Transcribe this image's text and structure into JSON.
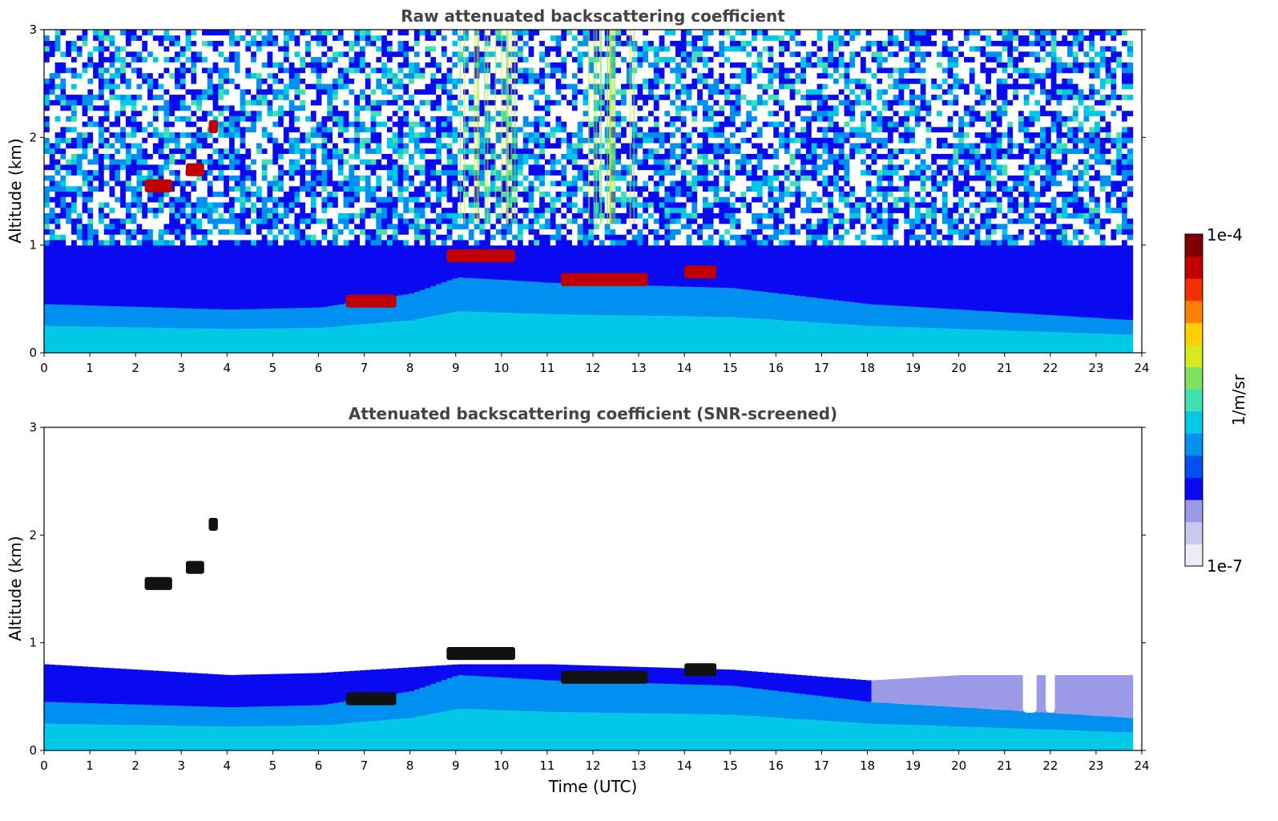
{
  "chart_data": [
    {
      "type": "heatmap",
      "title": "Raw attenuated backscattering coefficient",
      "xlabel": "",
      "ylabel": "Altitude (km)",
      "xlim": [
        0,
        24
      ],
      "ylim": [
        0,
        3
      ],
      "x_ticks": [
        "0",
        "1",
        "2",
        "3",
        "4",
        "5",
        "6",
        "7",
        "8",
        "9",
        "10",
        "11",
        "12",
        "13",
        "14",
        "15",
        "16",
        "17",
        "18",
        "19",
        "20",
        "21",
        "22",
        "23",
        "24"
      ],
      "y_ticks": [
        "0",
        "1",
        "2",
        "3"
      ],
      "boundary_layer_top_km": [
        {
          "t": 0,
          "h": 0.45
        },
        {
          "t": 4,
          "h": 0.4
        },
        {
          "t": 6,
          "h": 0.42
        },
        {
          "t": 8,
          "h": 0.55
        },
        {
          "t": 9,
          "h": 0.7
        },
        {
          "t": 11,
          "h": 0.65
        },
        {
          "t": 15,
          "h": 0.6
        },
        {
          "t": 18,
          "h": 0.45
        },
        {
          "t": 20,
          "h": 0.4
        },
        {
          "t": 23.8,
          "h": 0.3
        }
      ],
      "cloud_features": [
        {
          "t_start": 2.2,
          "t_end": 2.8,
          "altitude_km": 1.55
        },
        {
          "t_start": 3.1,
          "t_end": 3.5,
          "altitude_km": 1.7
        },
        {
          "t_start": 3.6,
          "t_end": 3.8,
          "altitude_km": 2.1
        },
        {
          "t_start": 6.6,
          "t_end": 7.7,
          "altitude_km": 0.48
        },
        {
          "t_start": 8.8,
          "t_end": 10.3,
          "altitude_km": 0.9
        },
        {
          "t_start": 11.3,
          "t_end": 13.2,
          "altitude_km": 0.68
        },
        {
          "t_start": 14.0,
          "t_end": 14.7,
          "altitude_km": 0.75
        }
      ]
    },
    {
      "type": "heatmap",
      "title": "Attenuated backscattering coefficient (SNR-screened)",
      "xlabel": "Time (UTC)",
      "ylabel": "Altitude (km)",
      "xlim": [
        0,
        24
      ],
      "ylim": [
        0,
        3
      ],
      "x_ticks": [
        "0",
        "1",
        "2",
        "3",
        "4",
        "5",
        "6",
        "7",
        "8",
        "9",
        "10",
        "11",
        "12",
        "13",
        "14",
        "15",
        "16",
        "17",
        "18",
        "19",
        "20",
        "21",
        "22",
        "23",
        "24"
      ],
      "y_ticks": [
        "0",
        "1",
        "2",
        "3"
      ],
      "screened_top_km": [
        {
          "t": 0,
          "h": 0.8
        },
        {
          "t": 4,
          "h": 0.7
        },
        {
          "t": 6,
          "h": 0.72
        },
        {
          "t": 9,
          "h": 0.8
        },
        {
          "t": 11,
          "h": 0.8
        },
        {
          "t": 15,
          "h": 0.75
        },
        {
          "t": 18,
          "h": 0.65
        },
        {
          "t": 20,
          "h": 0.7
        },
        {
          "t": 23.8,
          "h": 0.7
        }
      ],
      "gaps": [
        {
          "t_start": 21.4,
          "t_end": 21.7,
          "altitude_km": 0.35
        },
        {
          "t_start": 21.9,
          "t_end": 22.1,
          "altitude_km": 0.35
        }
      ]
    }
  ],
  "colorbar": {
    "label": "1/m/sr",
    "max_label": "1e-4",
    "min_label": "1e-7",
    "colors": [
      "#ececf8",
      "#c9c9f0",
      "#9a9ae8",
      "#0a0af0",
      "#0050f0",
      "#0090f0",
      "#00c8e6",
      "#40e0b0",
      "#80e060",
      "#d8e820",
      "#ffd000",
      "#ff8000",
      "#f03000",
      "#c00000",
      "#800000"
    ]
  }
}
